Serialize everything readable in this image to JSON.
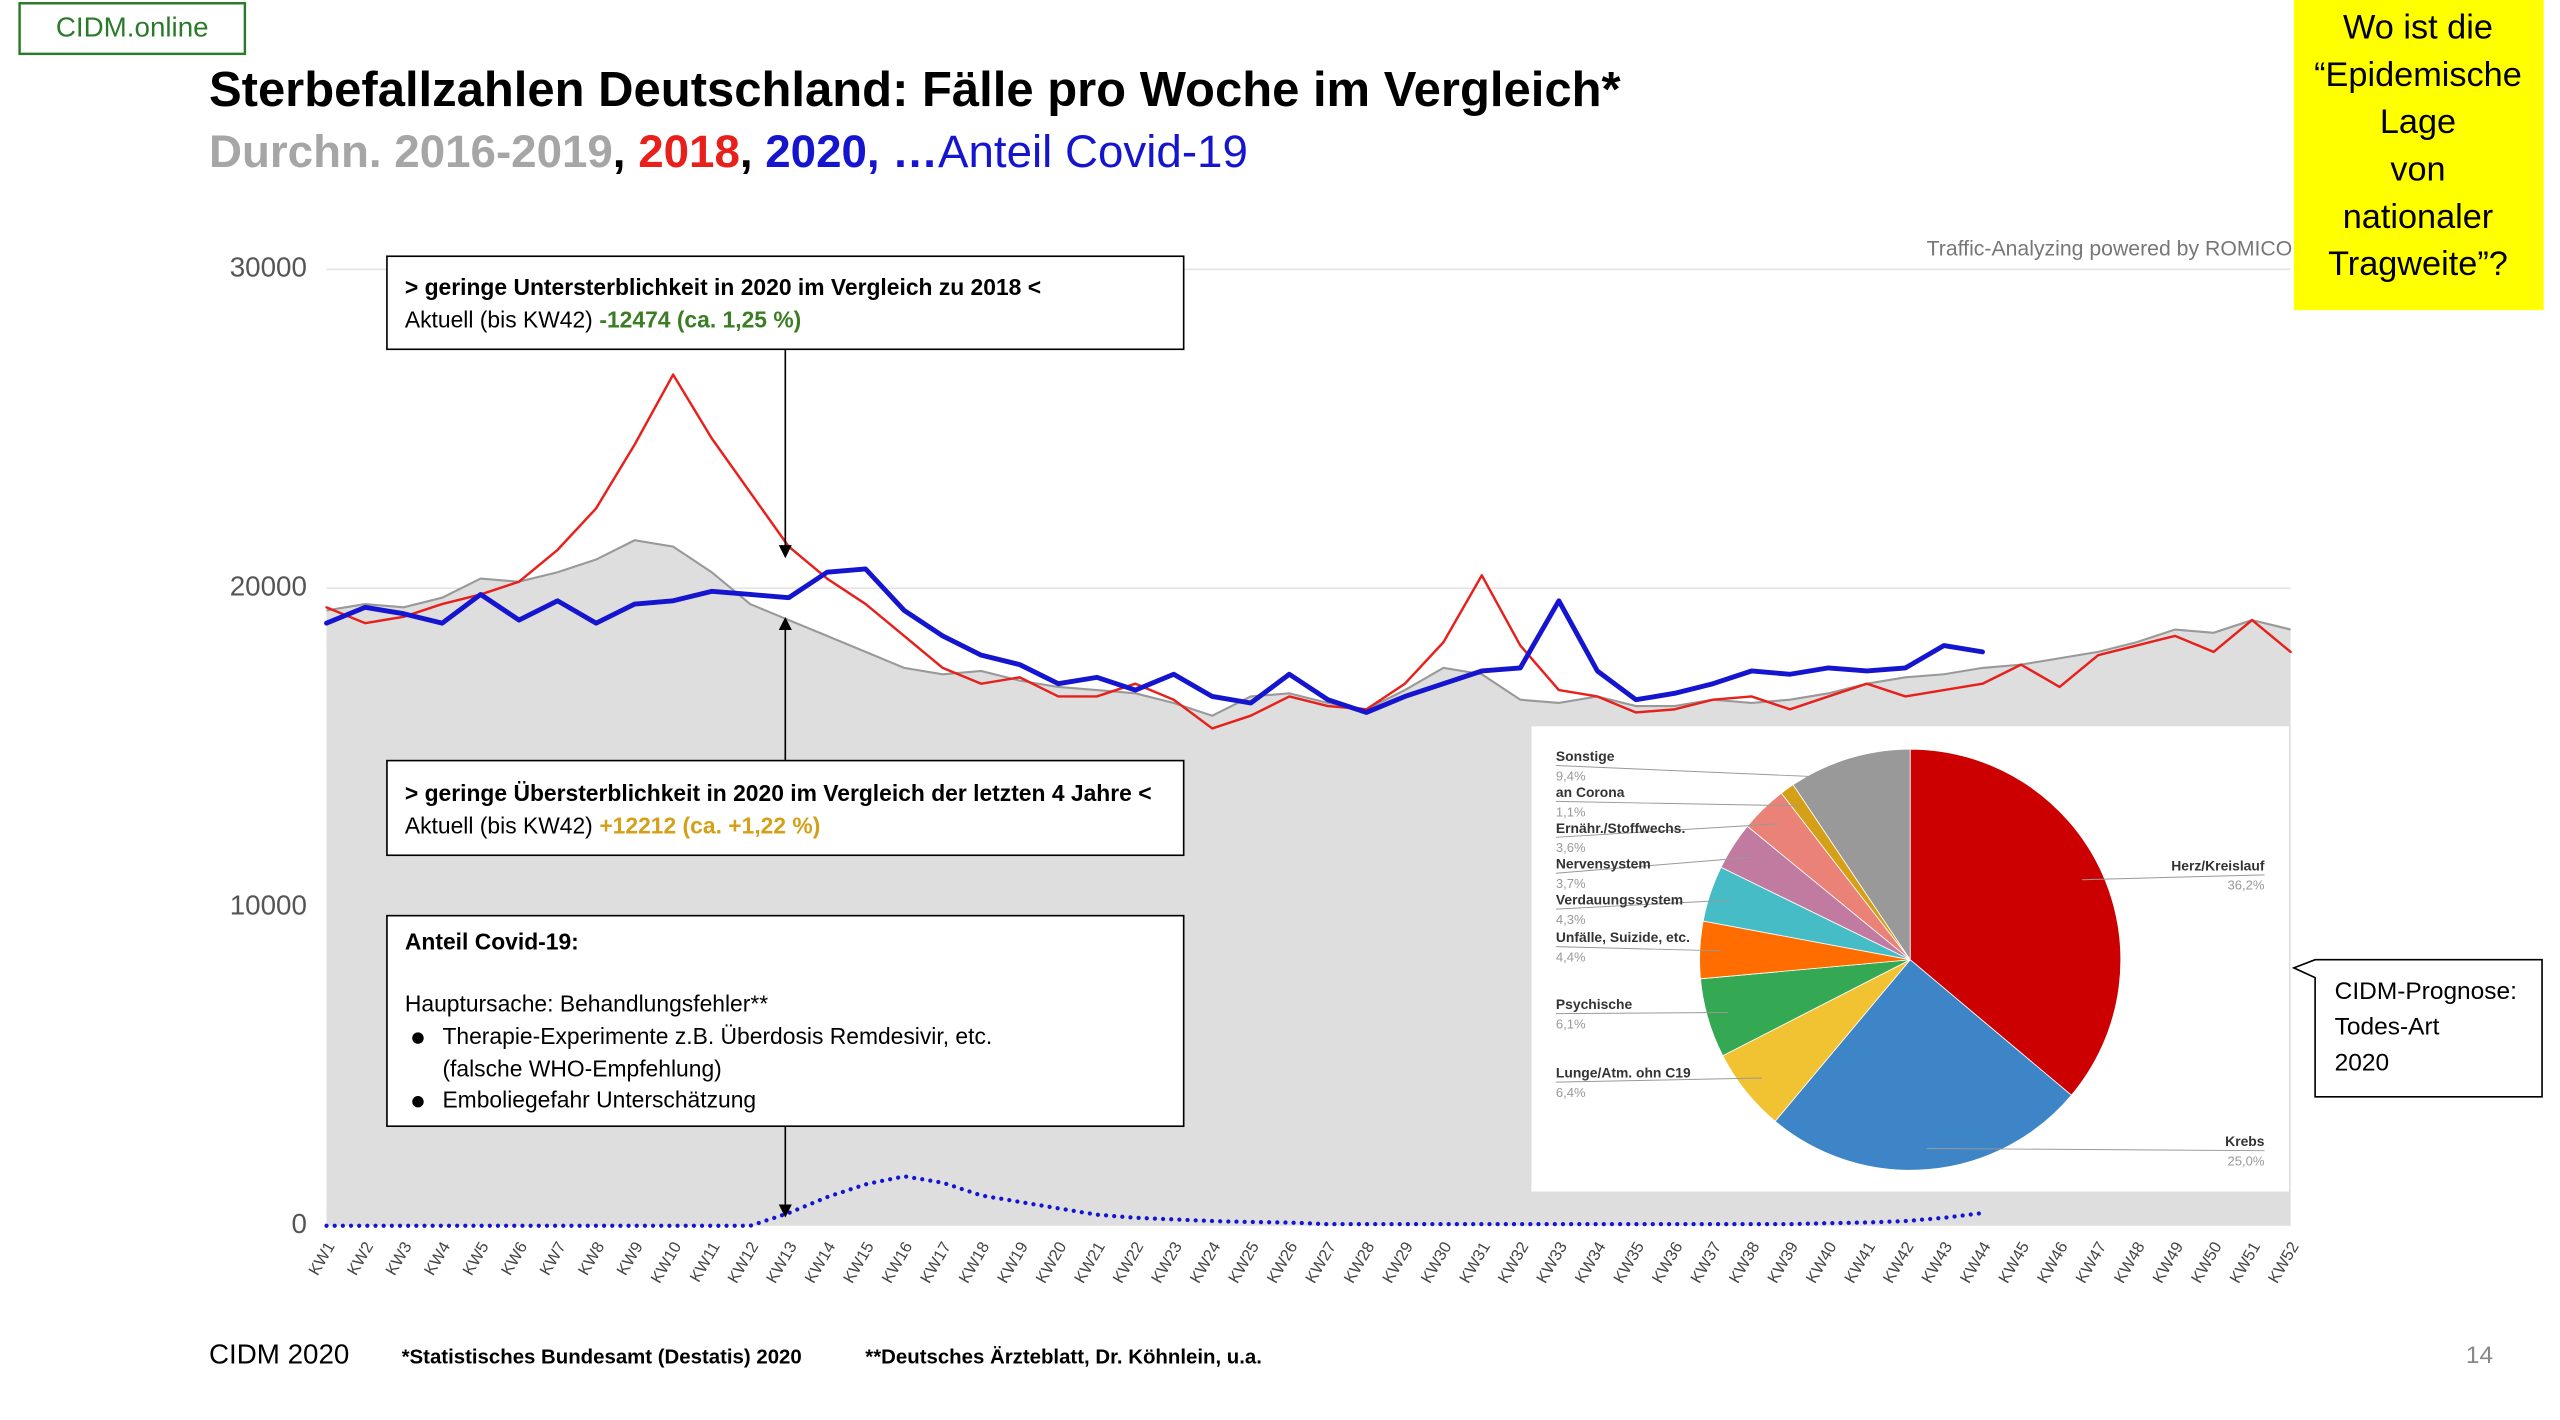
{
  "logo": "CIDM.online",
  "title": "Sterbefallzahlen Deutschland: Fälle pro Woche im Vergleich*",
  "callout": {
    "lines": [
      "Wo ist die",
      "“Epidemische",
      "Lage",
      "von",
      "nationaler",
      "Tragweite”?"
    ]
  },
  "watermark": "Traffic-Analyzing powered by ROMICO",
  "annotations": [
    {
      "heading": "> geringe Untersterblichkeit in 2020 im Vergleich zu 2018 <",
      "text": "Aktuell (bis KW42)",
      "highlight": "-12474 (ca. 1,25 %)"
    },
    {
      "heading": "> geringe Übersterblichkeit in 2020 im Vergleich der letzten 4 Jahre <",
      "text": "Aktuell (bis KW42)",
      "highlight": "+12212 (ca. +1,22 %)"
    },
    {
      "heading": "Anteil Covid-19:",
      "text": "Hauptursache: Behandlungsfehler**",
      "bullets": [
        [
          "Therapie-Experimente z.B. Überdosis Remdesivir, etc.",
          "(falsche WHO-Empfehlung)"
        ],
        [
          "Emboliegefahr Unterschätzung"
        ]
      ]
    }
  ],
  "prognosis": {
    "lines": [
      "CIDM-Prognose:",
      "Todes-Art",
      "2020"
    ]
  },
  "footer": {
    "brand": "CIDM 2020",
    "source1": "*Statistisches Bundesamt (Destatis) 2020",
    "source2": "**Deutsches Ärzteblatt, Dr. Köhnlein, u.a.",
    "page": "14"
  },
  "chart_data": [
    {
      "type": "line",
      "subtitle_separators": [
        ", ",
        ", ",
        ", …"
      ],
      "categories": [
        "KW1",
        "KW2",
        "KW3",
        "KW4",
        "KW5",
        "KW6",
        "KW7",
        "KW8",
        "KW9",
        "KW10",
        "KW11",
        "KW12",
        "KW13",
        "KW14",
        "KW15",
        "KW16",
        "KW17",
        "KW18",
        "KW19",
        "KW20",
        "KW21",
        "KW22",
        "KW23",
        "KW24",
        "KW25",
        "KW26",
        "KW27",
        "KW28",
        "KW29",
        "KW30",
        "KW31",
        "KW32",
        "KW33",
        "KW34",
        "KW35",
        "KW36",
        "KW37",
        "KW38",
        "KW39",
        "KW40",
        "KW41",
        "KW42",
        "KW43",
        "KW44",
        "KW45",
        "KW46",
        "KW47",
        "KW48",
        "KW49",
        "KW50",
        "KW51",
        "KW52"
      ],
      "ylim": [
        0,
        30000
      ],
      "yticks": [
        0,
        10000,
        20000,
        30000
      ],
      "grid": true,
      "series": [
        {
          "name": "Durchn. 2016-2019",
          "color": "#999999",
          "fill": "#dedede",
          "style": "area",
          "values": [
            19300,
            19500,
            19400,
            19700,
            20300,
            20200,
            20500,
            20900,
            21500,
            21300,
            20500,
            19500,
            19000,
            18500,
            18000,
            17500,
            17300,
            17400,
            17100,
            16900,
            16800,
            16700,
            16400,
            16000,
            16600,
            16700,
            16400,
            16200,
            16800,
            17500,
            17300,
            16500,
            16400,
            16600,
            16300,
            16300,
            16500,
            16400,
            16500,
            16700,
            17000,
            17200,
            17300,
            17500,
            17600,
            17800,
            18000,
            18300,
            18700,
            18600,
            19000,
            18700
          ]
        },
        {
          "name": "2018",
          "color": "#e8201c",
          "style": "solid",
          "values": [
            19400,
            18900,
            19100,
            19500,
            19800,
            20200,
            21200,
            22500,
            24500,
            26700,
            24700,
            23000,
            21300,
            20300,
            19500,
            18500,
            17500,
            17000,
            17200,
            16600,
            16600,
            17000,
            16500,
            15600,
            16000,
            16600,
            16300,
            16200,
            17000,
            18300,
            20400,
            18200,
            16800,
            16600,
            16100,
            16200,
            16500,
            16600,
            16200,
            16600,
            17000,
            16600,
            16800,
            17000,
            17600,
            16900,
            17900,
            18200,
            18500,
            18000,
            19000,
            18000
          ]
        },
        {
          "name": "2020",
          "color": "#1515d0",
          "style": "bold",
          "values": [
            18900,
            19400,
            19200,
            18900,
            19800,
            19000,
            19600,
            18900,
            19500,
            19600,
            19900,
            19800,
            19700,
            20500,
            20600,
            19300,
            18500,
            17900,
            17600,
            17000,
            17200,
            16800,
            17300,
            16600,
            16400,
            17300,
            16500,
            16100,
            16600,
            17000,
            17400,
            17500,
            19600,
            17400,
            16500,
            16700,
            17000,
            17400,
            17300,
            17500,
            17400,
            17500,
            18200,
            18000,
            null,
            null,
            null,
            null,
            null,
            null,
            null,
            null
          ]
        },
        {
          "name": "Anteil Covid-19",
          "color": "#1515d0",
          "style": "dotted",
          "values": [
            0,
            0,
            0,
            0,
            0,
            0,
            0,
            0,
            0,
            0,
            0,
            0,
            400,
            900,
            1300,
            1550,
            1350,
            950,
            750,
            550,
            350,
            250,
            200,
            150,
            120,
            100,
            50,
            50,
            50,
            50,
            50,
            50,
            50,
            50,
            50,
            50,
            50,
            50,
            50,
            80,
            100,
            150,
            250,
            400,
            null,
            null,
            null,
            null,
            null,
            null,
            null,
            null
          ]
        }
      ]
    },
    {
      "type": "pie",
      "categories": [
        "Herz/Kreislauf",
        "Krebs",
        "Lunge/Atm. ohn C19",
        "Psychische",
        "Unfälle, Suizide, etc.",
        "Verdauungssystem",
        "Nervensystem",
        "Ernähr./Stoffwechs.",
        "an Corona",
        "Sonstige"
      ],
      "values": [
        36.2,
        25.0,
        6.4,
        6.1,
        4.4,
        4.3,
        3.7,
        3.6,
        1.1,
        9.4
      ],
      "value_labels": [
        "36,2%",
        "25,0%",
        "6,4%",
        "6,1%",
        "4,4%",
        "4,3%",
        "3,7%",
        "3,6%",
        "1,1%",
        "9,4%"
      ],
      "colors": [
        "#cc0000",
        "#3d85c6",
        "#f1c232",
        "#34a853",
        "#ff6d01",
        "#46bdc6",
        "#c27ba0",
        "#ea8277",
        "#d4a017",
        "#999999"
      ]
    }
  ]
}
